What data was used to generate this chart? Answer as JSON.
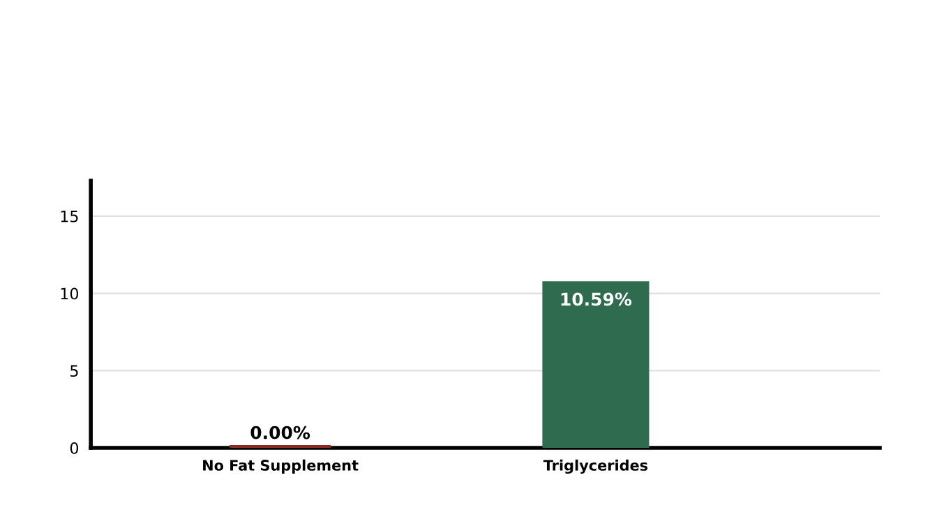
{
  "chart_data": {
    "type": "bar",
    "categories": [
      "No Fat Supplement",
      "Triglycerides"
    ],
    "values": [
      0,
      10.59
    ],
    "colors": [
      "#8b2a1e",
      "#2e6b4f"
    ],
    "value_labels": [
      "0.00%",
      "10.59%"
    ],
    "ylim": [
      0,
      17.3
    ],
    "yticks": [
      0,
      5,
      10,
      15
    ],
    "grid": "y"
  }
}
